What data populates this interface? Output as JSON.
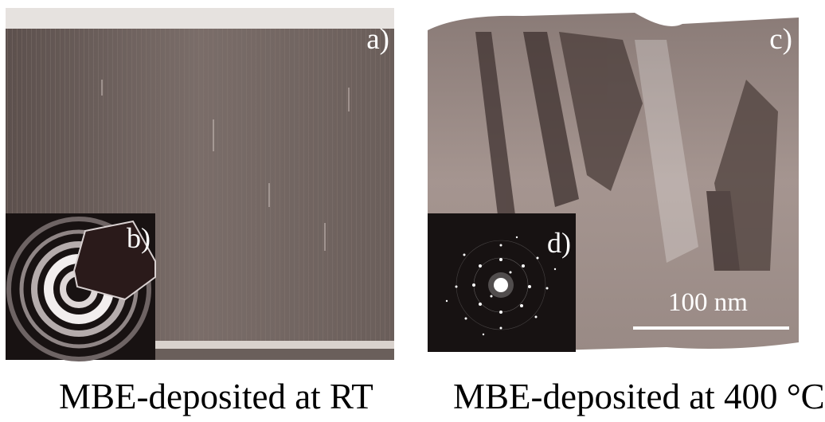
{
  "panel_a": {
    "label": "a)"
  },
  "inset_b": {
    "label": "b)"
  },
  "panel_c": {
    "label": "c)",
    "scale_bar_text": "100 nm"
  },
  "inset_d": {
    "label": "d)"
  },
  "captions": {
    "left": "MBE-deposited at RT",
    "right": "MBE-deposited at 400 °C"
  }
}
